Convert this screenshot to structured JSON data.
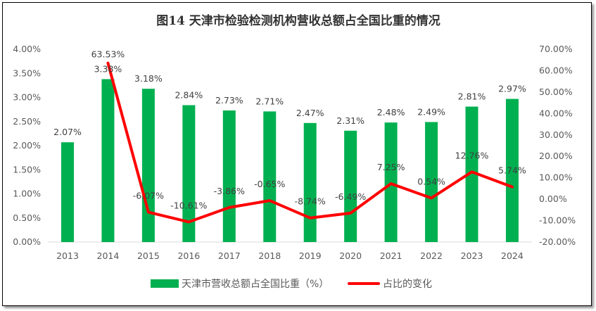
{
  "chart_data": {
    "type": "bar+line",
    "title": "图14 天津市检验检测机构营收总额占全国比重的情况",
    "categories": [
      "2013",
      "2014",
      "2015",
      "2016",
      "2017",
      "2018",
      "2019",
      "2020",
      "2021",
      "2022",
      "2023",
      "2024"
    ],
    "series": [
      {
        "name": "天津市营收总额占全国比重（%）",
        "type": "bar",
        "axis": "left",
        "color": "#00B050",
        "values": [
          2.07,
          3.38,
          3.18,
          2.84,
          2.73,
          2.71,
          2.47,
          2.31,
          2.48,
          2.49,
          2.81,
          2.97
        ],
        "labels": [
          "2.07%",
          "3.38%",
          "3.18%",
          "2.84%",
          "2.73%",
          "2.71%",
          "2.47%",
          "2.31%",
          "2.48%",
          "2.49%",
          "2.81%",
          "2.97%"
        ]
      },
      {
        "name": "占比的变化",
        "type": "line",
        "axis": "right",
        "color": "#FF0000",
        "values": [
          null,
          63.53,
          -6.07,
          -10.61,
          -3.86,
          -0.65,
          -8.74,
          -6.49,
          7.25,
          0.54,
          12.76,
          5.74
        ],
        "labels": [
          "",
          "63.53%",
          "-6.07%",
          "-10.61%",
          "-3.86%",
          "-0.65%",
          "-8.74%",
          "-6.49%",
          "7.25%",
          "0.54%",
          "12.76%",
          "5.74%"
        ]
      }
    ],
    "left_axis": {
      "ylim": [
        0,
        4
      ],
      "ticks": [
        "0.00%",
        "0.50%",
        "1.00%",
        "1.50%",
        "2.00%",
        "2.50%",
        "3.00%",
        "3.50%",
        "4.00%"
      ]
    },
    "right_axis": {
      "ylim": [
        -20,
        70
      ],
      "ticks": [
        "-20.00%",
        "-10.00%",
        "0.00%",
        "10.00%",
        "20.00%",
        "30.00%",
        "40.00%",
        "50.00%",
        "60.00%",
        "70.00%"
      ]
    },
    "grid": false,
    "legend": "bottom"
  }
}
